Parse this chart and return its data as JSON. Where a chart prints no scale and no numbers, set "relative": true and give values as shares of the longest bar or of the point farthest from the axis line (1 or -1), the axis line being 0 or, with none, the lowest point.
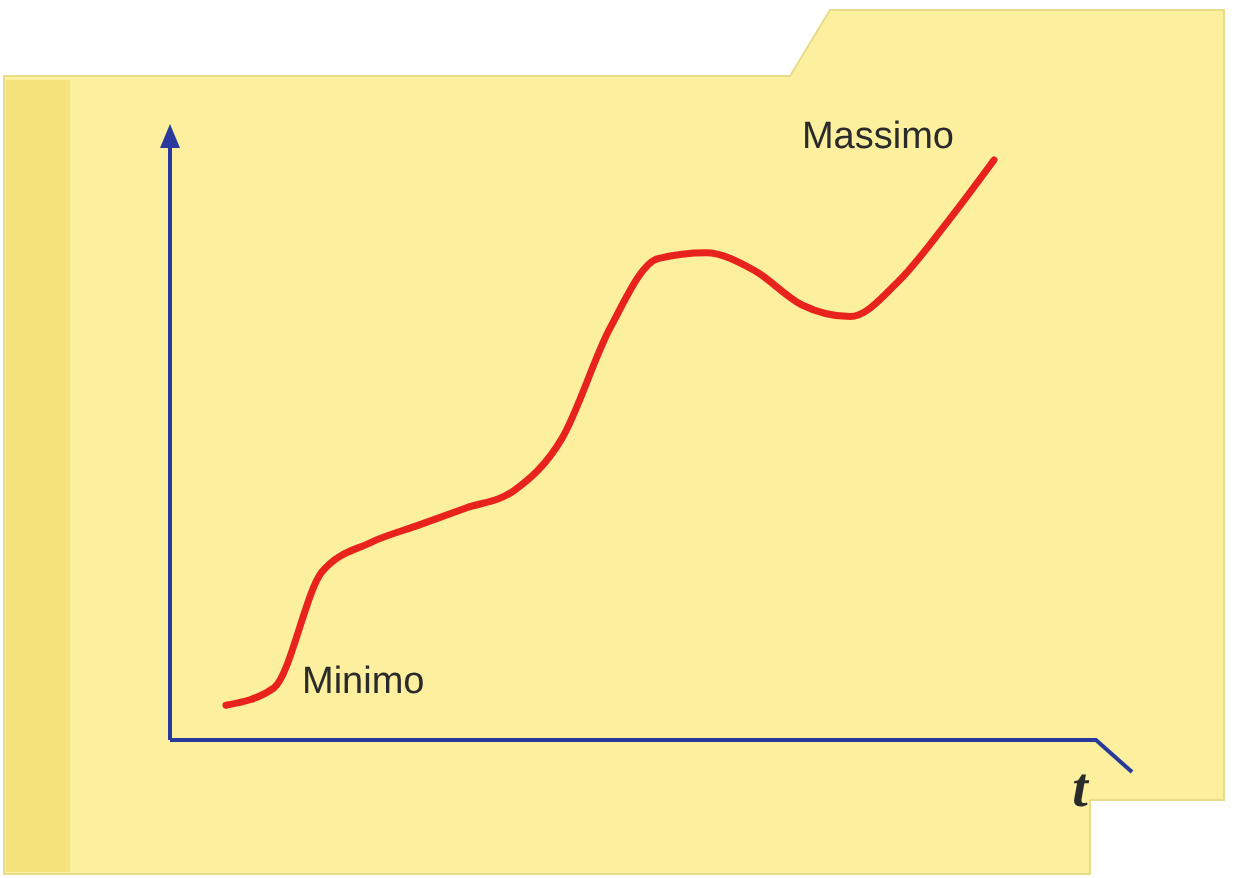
{
  "chart_data": {
    "type": "line",
    "relative": true,
    "xlabel": "t",
    "categories": [
      null,
      null,
      null,
      null,
      null,
      null,
      null,
      null,
      null,
      null,
      null,
      null,
      null,
      null,
      null,
      null,
      null
    ],
    "series": [
      {
        "color": "#e8221c",
        "values": [
          0.06,
          0.09,
          0.29,
          0.34,
          0.37,
          0.4,
          0.43,
          0.52,
          0.71,
          0.83,
          0.84,
          0.81,
          0.75,
          0.73,
          0.79,
          0.89,
          1.0
        ]
      }
    ],
    "annotations": [
      "Minimo",
      "Massimo"
    ],
    "marker": "none",
    "line_style": "solid"
  }
}
